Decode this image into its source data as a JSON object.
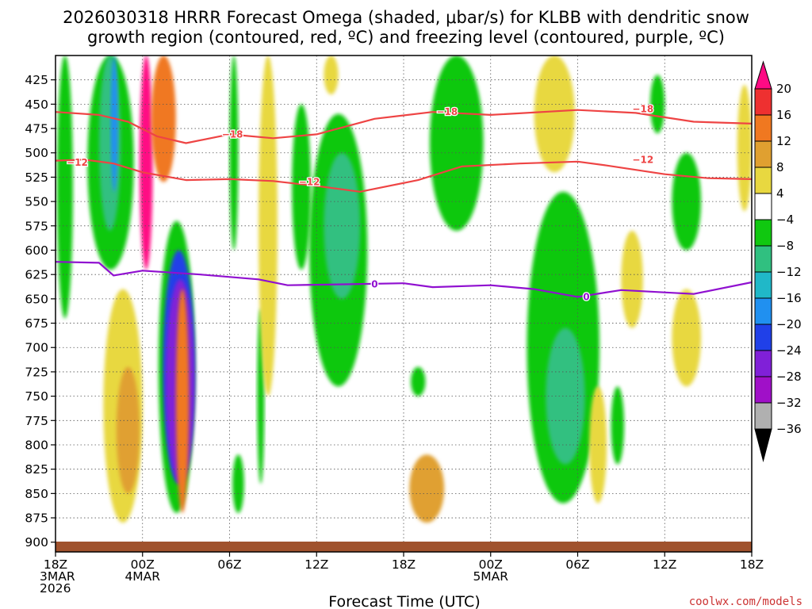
{
  "chart_data": {
    "type": "heatmap",
    "title_line1": "2026030318 HRRR Forecast Omega (shaded, μbar/s) for KLBB with dendritic snow",
    "title_line2": "growth region (contoured, red, ºC) and freezing level (contoured, purple, ºC)",
    "xlabel": "Forecast Time (UTC)",
    "credit": "coolwx.com/models",
    "x_hours_range": [
      0,
      48
    ],
    "y_range_hpa": [
      400,
      910
    ],
    "x_ticks": [
      {
        "hour": 0,
        "lines": [
          "18Z",
          "3MAR",
          "2026"
        ]
      },
      {
        "hour": 6,
        "lines": [
          "00Z",
          "4MAR"
        ]
      },
      {
        "hour": 12,
        "lines": [
          "06Z"
        ]
      },
      {
        "hour": 18,
        "lines": [
          "12Z"
        ]
      },
      {
        "hour": 24,
        "lines": [
          "18Z"
        ]
      },
      {
        "hour": 30,
        "lines": [
          "00Z",
          "5MAR"
        ]
      },
      {
        "hour": 36,
        "lines": [
          "06Z"
        ]
      },
      {
        "hour": 42,
        "lines": [
          "12Z"
        ]
      },
      {
        "hour": 48,
        "lines": [
          "18Z"
        ]
      }
    ],
    "y_ticks": [
      425,
      450,
      475,
      500,
      525,
      550,
      575,
      600,
      625,
      650,
      675,
      700,
      725,
      750,
      775,
      800,
      825,
      850,
      875,
      900
    ],
    "colorbar": {
      "levels": [
        "20",
        "16",
        "12",
        "8",
        "4",
        "−4",
        "−8",
        "−12",
        "−16",
        "−20",
        "−24",
        "−28",
        "−32",
        "−36"
      ],
      "colors": [
        "#ff0a84",
        "#ee3030",
        "#f07820",
        "#e0a030",
        "#e8d840",
        "#ffffff",
        "#10c810",
        "#30c080",
        "#20b8c8",
        "#2090f0",
        "#2040e8",
        "#8020d8",
        "#a010c8",
        "#b0b0b0",
        "#000000"
      ]
    },
    "contours": [
      {
        "name": "dendritic_-18C",
        "color": "#ee4444",
        "label": "−18",
        "points": [
          [
            0,
            458
          ],
          [
            3,
            461
          ],
          [
            5,
            468
          ],
          [
            7,
            483
          ],
          [
            9,
            490
          ],
          [
            12,
            481
          ],
          [
            15,
            485
          ],
          [
            18,
            481
          ],
          [
            22,
            465
          ],
          [
            26,
            458
          ],
          [
            30,
            461
          ],
          [
            36,
            456
          ],
          [
            40,
            459
          ],
          [
            44,
            468
          ],
          [
            48,
            470
          ]
        ],
        "label_at": [
          [
            12.2,
            481
          ],
          [
            27,
            458
          ],
          [
            40.5,
            455
          ]
        ]
      },
      {
        "name": "dendritic_-12C",
        "color": "#ee4444",
        "label": "−12",
        "points": [
          [
            0,
            508
          ],
          [
            2,
            507
          ],
          [
            4,
            511
          ],
          [
            6,
            520
          ],
          [
            9,
            528
          ],
          [
            12,
            527
          ],
          [
            15,
            529
          ],
          [
            18,
            534
          ],
          [
            21,
            540
          ],
          [
            25,
            528
          ],
          [
            28,
            514
          ],
          [
            32,
            511
          ],
          [
            36,
            509
          ],
          [
            38,
            513
          ],
          [
            42,
            522
          ],
          [
            45,
            526
          ],
          [
            48,
            527
          ]
        ],
        "label_at": [
          [
            1.5,
            510
          ],
          [
            17.5,
            530
          ],
          [
            40.5,
            507
          ]
        ]
      },
      {
        "name": "freezing_level_0C",
        "color": "#9010d0",
        "label": "0",
        "points": [
          [
            0,
            612
          ],
          [
            3,
            613
          ],
          [
            4,
            626
          ],
          [
            6,
            621
          ],
          [
            10,
            625
          ],
          [
            14,
            630
          ],
          [
            16,
            636
          ],
          [
            20,
            635
          ],
          [
            24,
            634
          ],
          [
            26,
            638
          ],
          [
            30,
            636
          ],
          [
            33,
            640
          ],
          [
            36,
            648
          ],
          [
            39,
            641
          ],
          [
            44,
            645
          ],
          [
            48,
            633
          ]
        ],
        "label_at": [
          [
            22,
            635
          ],
          [
            36.6,
            648
          ]
        ]
      }
    ],
    "shaded_regions": [
      {
        "value": -8,
        "x": [
          0.1,
          1.2
        ],
        "y": [
          400,
          670
        ]
      },
      {
        "value": -8,
        "x": [
          2.2,
          5.4
        ],
        "y": [
          400,
          620
        ]
      },
      {
        "value": -12,
        "x": [
          3.0,
          4.5
        ],
        "y": [
          400,
          580
        ]
      },
      {
        "value": -20,
        "x": [
          3.8,
          4.3
        ],
        "y": [
          400,
          540
        ]
      },
      {
        "value": 20,
        "x": [
          5.8,
          6.7
        ],
        "y": [
          400,
          620
        ]
      },
      {
        "value": 12,
        "x": [
          6.6,
          8.3
        ],
        "y": [
          400,
          530
        ]
      },
      {
        "value": -8,
        "x": [
          7.1,
          9.6
        ],
        "y": [
          570,
          870
        ]
      },
      {
        "value": -24,
        "x": [
          7.4,
          9.6
        ],
        "y": [
          600,
          840
        ]
      },
      {
        "value": -28,
        "x": [
          7.6,
          9.6
        ],
        "y": [
          630,
          840
        ]
      },
      {
        "value": 12,
        "x": [
          8.3,
          9.2
        ],
        "y": [
          640,
          870
        ]
      },
      {
        "value": 4,
        "x": [
          3.3,
          6.0
        ],
        "y": [
          640,
          880
        ]
      },
      {
        "value": 8,
        "x": [
          4.2,
          5.8
        ],
        "y": [
          720,
          850
        ]
      },
      {
        "value": -8,
        "x": [
          12.0,
          12.6
        ],
        "y": [
          400,
          600
        ]
      },
      {
        "value": -8,
        "x": [
          12.2,
          13.0
        ],
        "y": [
          810,
          870
        ]
      },
      {
        "value": -8,
        "x": [
          13.9,
          14.4
        ],
        "y": [
          660,
          840
        ]
      },
      {
        "value": 4,
        "x": [
          14.0,
          15.3
        ],
        "y": [
          400,
          750
        ]
      },
      {
        "value": -8,
        "x": [
          16.3,
          17.6
        ],
        "y": [
          450,
          620
        ]
      },
      {
        "value": -8,
        "x": [
          17.5,
          21.5
        ],
        "y": [
          460,
          740
        ]
      },
      {
        "value": -12,
        "x": [
          18.5,
          21.0
        ],
        "y": [
          500,
          650
        ]
      },
      {
        "value": 4,
        "x": [
          18.5,
          19.5
        ],
        "y": [
          400,
          440
        ]
      },
      {
        "value": -8,
        "x": [
          24.5,
          25.5
        ],
        "y": [
          720,
          750
        ]
      },
      {
        "value": 8,
        "x": [
          24.4,
          26.8
        ],
        "y": [
          810,
          880
        ]
      },
      {
        "value": -8,
        "x": [
          25.8,
          29.5
        ],
        "y": [
          400,
          580
        ]
      },
      {
        "value": 4,
        "x": [
          33.0,
          35.8
        ],
        "y": [
          400,
          520
        ]
      },
      {
        "value": -8,
        "x": [
          32.5,
          37.5
        ],
        "y": [
          540,
          860
        ]
      },
      {
        "value": -12,
        "x": [
          33.8,
          36.5
        ],
        "y": [
          680,
          820
        ]
      },
      {
        "value": 4,
        "x": [
          36.8,
          38.0
        ],
        "y": [
          740,
          860
        ]
      },
      {
        "value": 4,
        "x": [
          39.0,
          40.5
        ],
        "y": [
          580,
          680
        ]
      },
      {
        "value": -8,
        "x": [
          38.3,
          39.2
        ],
        "y": [
          740,
          820
        ]
      },
      {
        "value": -8,
        "x": [
          41.0,
          42.0
        ],
        "y": [
          420,
          480
        ]
      },
      {
        "value": -8,
        "x": [
          42.5,
          44.5
        ],
        "y": [
          500,
          600
        ]
      },
      {
        "value": 4,
        "x": [
          42.5,
          44.5
        ],
        "y": [
          640,
          740
        ]
      },
      {
        "value": 4,
        "x": [
          47.0,
          48.0
        ],
        "y": [
          430,
          560
        ]
      }
    ],
    "terrain_color": "#a0522d"
  }
}
